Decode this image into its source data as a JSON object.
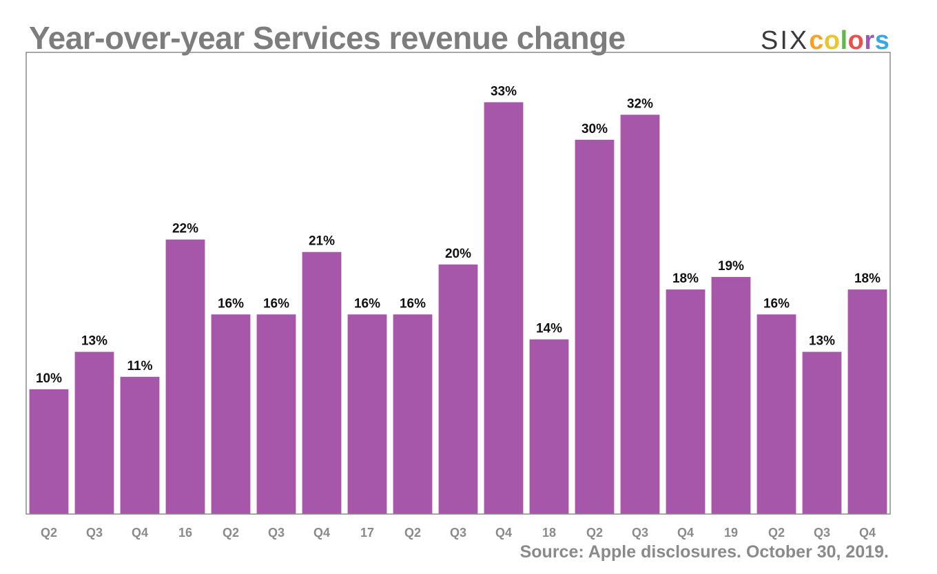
{
  "header": {
    "title": "Year-over-year Services revenue change",
    "brand_six": "SIX",
    "brand_colors": [
      {
        "char": "c",
        "color": "#f3a32a"
      },
      {
        "char": "o",
        "color": "#e9c62a"
      },
      {
        "char": "l",
        "color": "#62b64a"
      },
      {
        "char": "o",
        "color": "#e8524a"
      },
      {
        "char": "r",
        "color": "#9b59b6"
      },
      {
        "char": "s",
        "color": "#3aa8e0"
      }
    ]
  },
  "footer": {
    "source": "Source: Apple disclosures. October 30, 2019."
  },
  "chart_data": {
    "type": "bar",
    "title": "Year-over-year Services revenue change",
    "xlabel": "",
    "ylabel": "",
    "categories": [
      "Q2",
      "Q3",
      "Q4",
      "16",
      "Q2",
      "Q3",
      "Q4",
      "17",
      "Q2",
      "Q3",
      "Q4",
      "18",
      "Q2",
      "Q3",
      "Q4",
      "19",
      "Q2",
      "Q3",
      "Q4"
    ],
    "values": [
      10,
      13,
      11,
      22,
      16,
      16,
      21,
      16,
      16,
      20,
      33,
      14,
      30,
      32,
      18,
      19,
      16,
      13,
      18
    ],
    "value_labels": [
      "10%",
      "13%",
      "11%",
      "22%",
      "16%",
      "16%",
      "21%",
      "16%",
      "16%",
      "20%",
      "33%",
      "14%",
      "30%",
      "32%",
      "18%",
      "19%",
      "16%",
      "13%",
      "18%"
    ],
    "ylim": [
      0,
      37
    ],
    "bar_color": "#a657aa",
    "frame_color": "#8a8a8a",
    "grid": false,
    "legend": "none"
  }
}
